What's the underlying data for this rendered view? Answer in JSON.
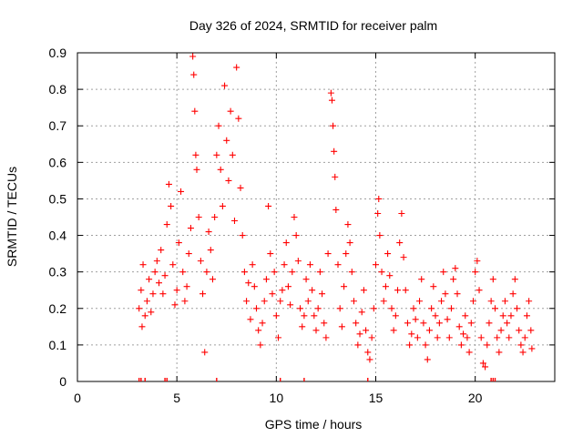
{
  "chart_data": {
    "type": "scatter",
    "title": "Day 326 of 2024, SRMTID for receiver palm",
    "xlabel": "GPS time / hours",
    "ylabel": "SRMTID / TECUs",
    "xlim": [
      0,
      24
    ],
    "ylim": [
      0,
      0.9
    ],
    "x_ticks": [
      0,
      5,
      10,
      15,
      20
    ],
    "x_tick_labels": [
      "0",
      "5",
      "10",
      "15",
      "20"
    ],
    "y_ticks": [
      0,
      0.1,
      0.2,
      0.3,
      0.4,
      0.5,
      0.6,
      0.7,
      0.8,
      0.9
    ],
    "y_tick_labels": [
      "0",
      "0.1",
      "0.2",
      "0.3",
      "0.4",
      "0.5",
      "0.6",
      "0.7",
      "0.8",
      "0.9"
    ],
    "grid": true,
    "marker": "+",
    "color": "#ff0000",
    "series": [
      {
        "name": "SRMTID",
        "points": [
          [
            3.1,
            0.2
          ],
          [
            3.2,
            0.25
          ],
          [
            3.25,
            0.15
          ],
          [
            3.3,
            0.32
          ],
          [
            3.4,
            0.18
          ],
          [
            3.5,
            0.22
          ],
          [
            3.6,
            0.28
          ],
          [
            3.7,
            0.19
          ],
          [
            3.8,
            0.24
          ],
          [
            3.9,
            0.3
          ],
          [
            4.0,
            0.33
          ],
          [
            4.1,
            0.27
          ],
          [
            4.2,
            0.36
          ],
          [
            4.3,
            0.24
          ],
          [
            4.4,
            0.29
          ],
          [
            4.5,
            0.43
          ],
          [
            4.6,
            0.54
          ],
          [
            4.7,
            0.48
          ],
          [
            4.8,
            0.32
          ],
          [
            4.9,
            0.21
          ],
          [
            5.0,
            0.25
          ],
          [
            5.1,
            0.38
          ],
          [
            5.2,
            0.52
          ],
          [
            5.3,
            0.3
          ],
          [
            5.4,
            0.22
          ],
          [
            5.5,
            0.26
          ],
          [
            5.6,
            0.35
          ],
          [
            5.7,
            0.42
          ],
          [
            5.8,
            0.89
          ],
          [
            5.85,
            0.84
          ],
          [
            5.9,
            0.74
          ],
          [
            5.95,
            0.62
          ],
          [
            6.0,
            0.58
          ],
          [
            6.1,
            0.45
          ],
          [
            6.2,
            0.33
          ],
          [
            6.3,
            0.24
          ],
          [
            6.4,
            0.08
          ],
          [
            6.5,
            0.3
          ],
          [
            6.6,
            0.41
          ],
          [
            6.7,
            0.36
          ],
          [
            6.8,
            0.28
          ],
          [
            6.9,
            0.45
          ],
          [
            7.0,
            0.62
          ],
          [
            7.1,
            0.7
          ],
          [
            7.2,
            0.58
          ],
          [
            7.3,
            0.48
          ],
          [
            7.4,
            0.81
          ],
          [
            7.5,
            0.66
          ],
          [
            7.6,
            0.55
          ],
          [
            7.7,
            0.74
          ],
          [
            7.8,
            0.62
          ],
          [
            7.9,
            0.44
          ],
          [
            8.0,
            0.86
          ],
          [
            8.1,
            0.72
          ],
          [
            8.2,
            0.53
          ],
          [
            8.3,
            0.4
          ],
          [
            8.4,
            0.3
          ],
          [
            8.5,
            0.22
          ],
          [
            8.6,
            0.27
          ],
          [
            8.7,
            0.17
          ],
          [
            8.8,
            0.32
          ],
          [
            8.9,
            0.26
          ],
          [
            9.0,
            0.2
          ],
          [
            9.1,
            0.14
          ],
          [
            9.2,
            0.1
          ],
          [
            9.3,
            0.16
          ],
          [
            9.4,
            0.22
          ],
          [
            9.5,
            0.28
          ],
          [
            9.6,
            0.48
          ],
          [
            9.7,
            0.35
          ],
          [
            9.8,
            0.24
          ],
          [
            9.9,
            0.3
          ],
          [
            10.0,
            0.18
          ],
          [
            10.1,
            0.12
          ],
          [
            10.2,
            0.22
          ],
          [
            10.3,
            0.25
          ],
          [
            10.4,
            0.32
          ],
          [
            10.5,
            0.38
          ],
          [
            10.6,
            0.26
          ],
          [
            10.7,
            0.21
          ],
          [
            10.8,
            0.3
          ],
          [
            10.9,
            0.45
          ],
          [
            11.0,
            0.4
          ],
          [
            11.1,
            0.33
          ],
          [
            11.2,
            0.2
          ],
          [
            11.3,
            0.15
          ],
          [
            11.4,
            0.18
          ],
          [
            11.5,
            0.28
          ],
          [
            11.6,
            0.22
          ],
          [
            11.7,
            0.32
          ],
          [
            11.8,
            0.25
          ],
          [
            11.9,
            0.18
          ],
          [
            12.0,
            0.14
          ],
          [
            12.1,
            0.2
          ],
          [
            12.2,
            0.3
          ],
          [
            12.3,
            0.24
          ],
          [
            12.4,
            0.16
          ],
          [
            12.5,
            0.12
          ],
          [
            12.6,
            0.35
          ],
          [
            12.75,
            0.79
          ],
          [
            12.8,
            0.77
          ],
          [
            12.85,
            0.7
          ],
          [
            12.9,
            0.63
          ],
          [
            12.95,
            0.56
          ],
          [
            13.0,
            0.47
          ],
          [
            13.1,
            0.32
          ],
          [
            13.2,
            0.2
          ],
          [
            13.3,
            0.15
          ],
          [
            13.4,
            0.26
          ],
          [
            13.5,
            0.35
          ],
          [
            13.6,
            0.43
          ],
          [
            13.7,
            0.38
          ],
          [
            13.8,
            0.3
          ],
          [
            13.9,
            0.22
          ],
          [
            14.0,
            0.16
          ],
          [
            14.1,
            0.1
          ],
          [
            14.2,
            0.13
          ],
          [
            14.3,
            0.19
          ],
          [
            14.4,
            0.25
          ],
          [
            14.5,
            0.14
          ],
          [
            14.6,
            0.08
          ],
          [
            14.7,
            0.06
          ],
          [
            14.8,
            0.12
          ],
          [
            14.9,
            0.2
          ],
          [
            15.0,
            0.32
          ],
          [
            15.1,
            0.46
          ],
          [
            15.15,
            0.5
          ],
          [
            15.2,
            0.4
          ],
          [
            15.3,
            0.3
          ],
          [
            15.4,
            0.22
          ],
          [
            15.5,
            0.26
          ],
          [
            15.6,
            0.35
          ],
          [
            15.7,
            0.29
          ],
          [
            15.8,
            0.2
          ],
          [
            15.9,
            0.14
          ],
          [
            16.0,
            0.18
          ],
          [
            16.1,
            0.25
          ],
          [
            16.2,
            0.38
          ],
          [
            16.3,
            0.46
          ],
          [
            16.4,
            0.34
          ],
          [
            16.5,
            0.25
          ],
          [
            16.6,
            0.16
          ],
          [
            16.7,
            0.1
          ],
          [
            16.8,
            0.13
          ],
          [
            16.9,
            0.2
          ],
          [
            17.0,
            0.17
          ],
          [
            17.1,
            0.12
          ],
          [
            17.2,
            0.22
          ],
          [
            17.3,
            0.28
          ],
          [
            17.4,
            0.16
          ],
          [
            17.5,
            0.1
          ],
          [
            17.6,
            0.06
          ],
          [
            17.7,
            0.14
          ],
          [
            17.8,
            0.2
          ],
          [
            17.9,
            0.26
          ],
          [
            18.0,
            0.18
          ],
          [
            18.1,
            0.12
          ],
          [
            18.2,
            0.16
          ],
          [
            18.3,
            0.22
          ],
          [
            18.4,
            0.3
          ],
          [
            18.5,
            0.24
          ],
          [
            18.6,
            0.17
          ],
          [
            18.7,
            0.12
          ],
          [
            18.8,
            0.2
          ],
          [
            18.9,
            0.28
          ],
          [
            19.0,
            0.31
          ],
          [
            19.1,
            0.24
          ],
          [
            19.2,
            0.15
          ],
          [
            19.3,
            0.1
          ],
          [
            19.4,
            0.13
          ],
          [
            19.5,
            0.18
          ],
          [
            19.6,
            0.12
          ],
          [
            19.7,
            0.08
          ],
          [
            19.8,
            0.16
          ],
          [
            19.9,
            0.22
          ],
          [
            20.0,
            0.3
          ],
          [
            20.1,
            0.33
          ],
          [
            20.2,
            0.25
          ],
          [
            20.3,
            0.12
          ],
          [
            20.4,
            0.05
          ],
          [
            20.5,
            0.04
          ],
          [
            20.6,
            0.1
          ],
          [
            20.7,
            0.16
          ],
          [
            20.8,
            0.22
          ],
          [
            20.9,
            0.28
          ],
          [
            21.0,
            0.2
          ],
          [
            21.1,
            0.12
          ],
          [
            21.2,
            0.08
          ],
          [
            21.3,
            0.14
          ],
          [
            21.4,
            0.18
          ],
          [
            21.5,
            0.22
          ],
          [
            21.6,
            0.16
          ],
          [
            21.7,
            0.12
          ],
          [
            21.8,
            0.18
          ],
          [
            21.9,
            0.24
          ],
          [
            22.0,
            0.28
          ],
          [
            22.1,
            0.2
          ],
          [
            22.2,
            0.14
          ],
          [
            22.3,
            0.1
          ],
          [
            22.4,
            0.08
          ],
          [
            22.5,
            0.12
          ],
          [
            22.6,
            0.18
          ],
          [
            22.7,
            0.22
          ],
          [
            22.8,
            0.14
          ],
          [
            22.85,
            0.09
          ]
        ]
      }
    ],
    "zero_points_x": [
      3.1,
      3.2,
      3.4,
      4.4,
      4.5,
      7.0,
      10.2,
      11.4,
      14.6,
      20.8,
      20.9,
      21.0
    ]
  }
}
